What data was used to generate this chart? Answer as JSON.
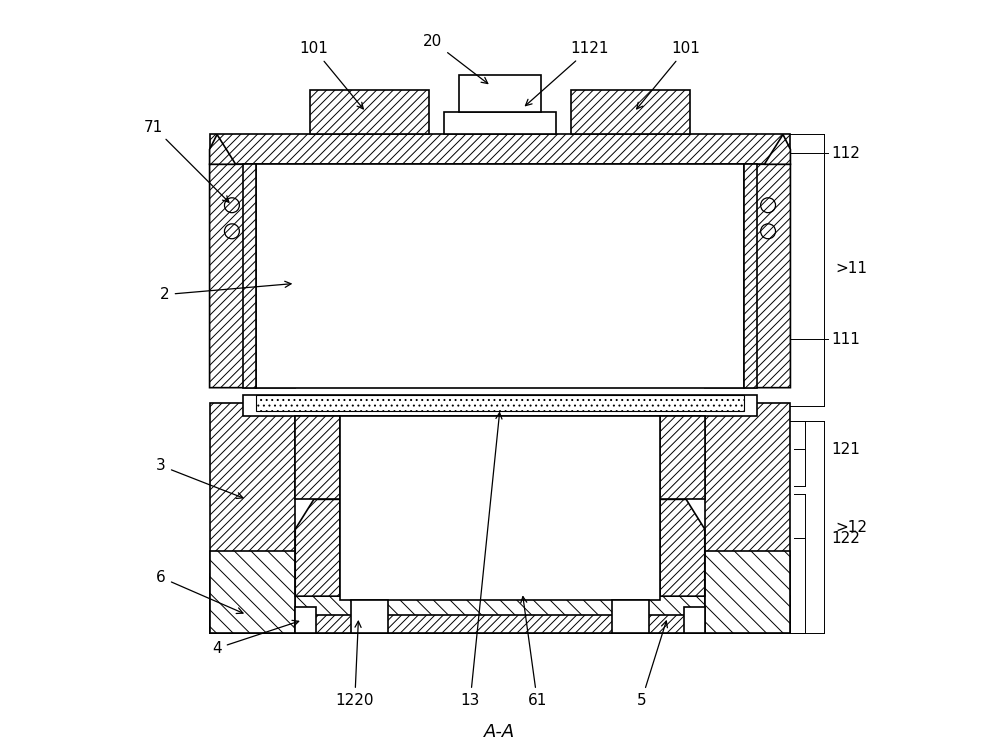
{
  "bg_color": "#ffffff",
  "lc": "#000000",
  "lw": 1.2,
  "figsize": [
    10.0,
    7.53
  ],
  "dpi": 100,
  "title": "A-A",
  "labels": {
    "101L": "101",
    "101R": "101",
    "20": "20",
    "1121": "1121",
    "71": "71",
    "112": "112",
    "11": "11",
    "111": "111",
    "2": "2",
    "121": "121",
    "12": "12",
    "3": "3",
    "122": "122",
    "6": "6",
    "4": "4",
    "1220": "1220",
    "13": "13",
    "61": "61",
    "5": "5"
  }
}
